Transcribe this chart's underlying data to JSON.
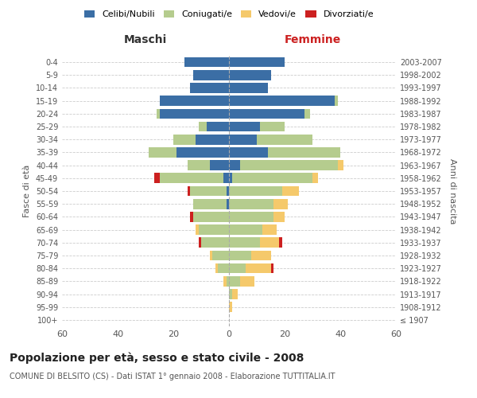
{
  "age_groups": [
    "100+",
    "95-99",
    "90-94",
    "85-89",
    "80-84",
    "75-79",
    "70-74",
    "65-69",
    "60-64",
    "55-59",
    "50-54",
    "45-49",
    "40-44",
    "35-39",
    "30-34",
    "25-29",
    "20-24",
    "15-19",
    "10-14",
    "5-9",
    "0-4"
  ],
  "birth_years": [
    "≤ 1907",
    "1908-1912",
    "1913-1917",
    "1918-1922",
    "1923-1927",
    "1928-1932",
    "1933-1937",
    "1938-1942",
    "1943-1947",
    "1948-1952",
    "1953-1957",
    "1958-1962",
    "1963-1967",
    "1968-1972",
    "1973-1977",
    "1978-1982",
    "1983-1987",
    "1988-1992",
    "1993-1997",
    "1998-2002",
    "2003-2007"
  ],
  "male": {
    "celibi": [
      0,
      0,
      0,
      0,
      0,
      0,
      0,
      0,
      0,
      1,
      1,
      2,
      7,
      19,
      12,
      8,
      25,
      25,
      14,
      13,
      16
    ],
    "coniugati": [
      0,
      0,
      0,
      1,
      4,
      6,
      10,
      11,
      13,
      12,
      13,
      23,
      8,
      10,
      8,
      3,
      1,
      0,
      0,
      0,
      0
    ],
    "vedovi": [
      0,
      0,
      0,
      1,
      1,
      1,
      0,
      1,
      0,
      0,
      0,
      0,
      0,
      0,
      0,
      0,
      0,
      0,
      0,
      0,
      0
    ],
    "divorziati": [
      0,
      0,
      0,
      0,
      0,
      0,
      1,
      0,
      1,
      0,
      1,
      2,
      0,
      0,
      0,
      0,
      0,
      0,
      0,
      0,
      0
    ]
  },
  "female": {
    "nubili": [
      0,
      0,
      0,
      0,
      0,
      0,
      0,
      0,
      0,
      0,
      0,
      1,
      4,
      14,
      10,
      11,
      27,
      38,
      14,
      15,
      20
    ],
    "coniugate": [
      0,
      0,
      1,
      4,
      6,
      8,
      11,
      12,
      16,
      16,
      19,
      29,
      35,
      26,
      20,
      9,
      2,
      1,
      0,
      0,
      0
    ],
    "vedove": [
      0,
      1,
      2,
      5,
      9,
      7,
      7,
      5,
      4,
      5,
      6,
      2,
      2,
      0,
      0,
      0,
      0,
      0,
      0,
      0,
      0
    ],
    "divorziate": [
      0,
      0,
      0,
      0,
      1,
      0,
      1,
      0,
      0,
      0,
      0,
      0,
      0,
      0,
      0,
      0,
      0,
      0,
      0,
      0,
      0
    ]
  },
  "colors": {
    "celibi": "#3b6ea5",
    "coniugati": "#b5cc8e",
    "vedovi": "#f5c96b",
    "divorziati": "#cc2020"
  },
  "title": "Popolazione per età, sesso e stato civile - 2008",
  "subtitle": "COMUNE DI BELSITO (CS) - Dati ISTAT 1° gennaio 2008 - Elaborazione TUTTITALIA.IT",
  "xlabel_left": "Maschi",
  "xlabel_right": "Femmine",
  "ylabel_left": "Fasce di età",
  "ylabel_right": "Anni di nascita",
  "xlim": 60,
  "legend_labels": [
    "Celibi/Nubili",
    "Coniugati/e",
    "Vedovi/e",
    "Divorziati/e"
  ],
  "background_color": "#ffffff",
  "grid_color": "#cccccc"
}
